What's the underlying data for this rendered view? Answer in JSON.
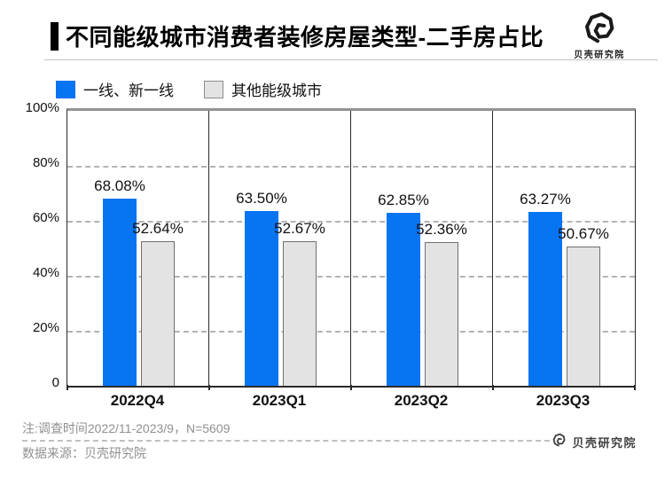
{
  "header": {
    "title": "不同能级城市消费者装修房屋类型-二手房占比",
    "brand_name": "贝壳研究院"
  },
  "legend": {
    "items": [
      {
        "label": "一线、新一线"
      },
      {
        "label": "其他能级城市"
      }
    ]
  },
  "chart_data": {
    "type": "bar",
    "title": "不同能级城市消费者装修房屋类型-二手房占比",
    "categories": [
      "2022Q4",
      "2023Q1",
      "2023Q2",
      "2023Q3"
    ],
    "series": [
      {
        "name": "一线、新一线",
        "color": "#0774f2",
        "values": [
          68.08,
          63.5,
          62.85,
          63.27
        ]
      },
      {
        "name": "其他能级城市",
        "color": "#e3e3e3",
        "border_color": "#707070",
        "values": [
          52.64,
          52.67,
          52.36,
          50.67
        ]
      }
    ],
    "value_labels": [
      [
        "68.08%",
        "63.50%",
        "62.85%",
        "63.27%"
      ],
      [
        "52.64%",
        "52.67%",
        "52.36%",
        "50.67%"
      ]
    ],
    "xlabel": "",
    "ylabel": "",
    "ylim": [
      0,
      100
    ],
    "yticks": [
      {
        "label": "100%",
        "value": 100
      },
      {
        "label": "80%",
        "value": 80
      },
      {
        "label": "60%",
        "value": 60
      },
      {
        "label": "40%",
        "value": 40
      },
      {
        "label": "20%",
        "value": 20
      },
      {
        "label": "0",
        "value": 0
      }
    ],
    "grid": "horizontal-dashed",
    "legend_position": "top-left"
  },
  "footer": {
    "note": "注:调查时间2022/11-2023/9，N=5609",
    "source": "数据来源：贝壳研究院",
    "brand_name": "贝壳研究院"
  },
  "colors": {
    "primary_blue": "#0774f2",
    "bar_gray_fill": "#e3e3e3",
    "bar_gray_border": "#707070",
    "grid_gray": "#b3b3b3",
    "text_dark": "#111111",
    "text_note_gray": "#909090"
  }
}
